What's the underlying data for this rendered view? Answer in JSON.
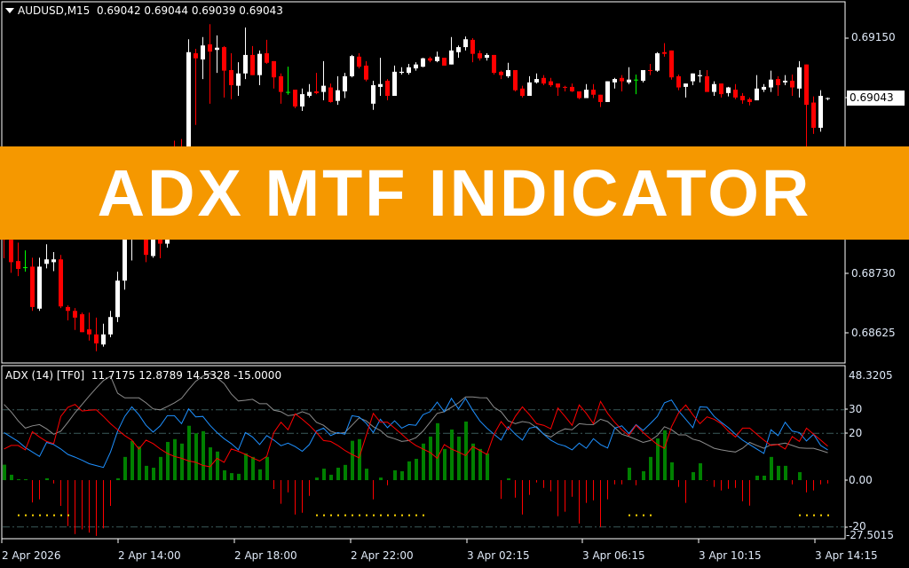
{
  "main_header": {
    "symbol": "AUDUSD,M15",
    "ohlc": "0.69042 0.69044 0.69039 0.69043"
  },
  "indicator_header": {
    "name": "ADX (14) [TF0]",
    "values": "11.7175 12.8789 14.5328 -15.0000"
  },
  "banner": {
    "title": "ADX MTF INDICATOR"
  },
  "price_axis": {
    "ticks": [
      "0.69150",
      "0.68730",
      "0.68625"
    ],
    "current_price": "0.69043"
  },
  "indicator_axis": {
    "ticks": [
      "48.3205",
      "30",
      "20",
      "0.00",
      "-20",
      "-27.5015"
    ]
  },
  "time_axis": {
    "ticks": [
      "2 Apr 2026",
      "2 Apr 14:00",
      "2 Apr 18:00",
      "2 Apr 22:00",
      "3 Apr 02:15",
      "3 Apr 06:15",
      "3 Apr 10:15",
      "3 Apr 14:15"
    ]
  },
  "colors": {
    "background": "#000000",
    "bull": "#ffffff",
    "bear": "#ff0000",
    "doji": "#00ff00",
    "adx": "#8c8c8c",
    "plus_di": "#1e90ff",
    "minus_di": "#ff0000",
    "hist_pos": "#008000",
    "hist_neg": "#ff0000",
    "signal": "#ffd700",
    "levels": "#3a5a5a",
    "banner": "#f59800"
  },
  "chart_data": {
    "type": "candlestick",
    "price_range": [
      0.6859,
      0.6918
    ],
    "candles_ohlc": [
      [
        0.68799,
        0.6881,
        0.68757,
        0.6879
      ],
      [
        0.6879,
        0.68799,
        0.68731,
        0.6875
      ],
      [
        0.68752,
        0.68785,
        0.68725,
        0.68738
      ],
      [
        0.68741,
        0.68771,
        0.68733,
        0.68741
      ],
      [
        0.68742,
        0.68758,
        0.68663,
        0.6867
      ],
      [
        0.68667,
        0.68758,
        0.68663,
        0.68742
      ],
      [
        0.68747,
        0.68782,
        0.68739,
        0.68755
      ],
      [
        0.6875,
        0.68768,
        0.68734,
        0.68755
      ],
      [
        0.68755,
        0.68763,
        0.68668,
        0.68671
      ],
      [
        0.6867,
        0.68673,
        0.68646,
        0.68663
      ],
      [
        0.68663,
        0.68668,
        0.68629,
        0.68651
      ],
      [
        0.68657,
        0.6866,
        0.68625,
        0.68625
      ],
      [
        0.6863,
        0.6866,
        0.6861,
        0.68621
      ],
      [
        0.68621,
        0.68651,
        0.68591,
        0.68605
      ],
      [
        0.68603,
        0.6864,
        0.68599,
        0.68621
      ],
      [
        0.68621,
        0.68663,
        0.68616,
        0.68652
      ],
      [
        0.68652,
        0.68733,
        0.68643,
        0.68717
      ],
      [
        0.68717,
        0.68831,
        0.68701,
        0.68815
      ],
      [
        0.68804,
        0.68902,
        0.68753,
        0.68886
      ],
      [
        0.68886,
        0.6891,
        0.68862,
        0.68902
      ],
      [
        0.68878,
        0.68894,
        0.6875,
        0.68763
      ],
      [
        0.68761,
        0.68815,
        0.68758,
        0.68791
      ],
      [
        0.68823,
        0.68839,
        0.68757,
        0.68783
      ],
      [
        0.68783,
        0.68839,
        0.68776,
        0.68831
      ],
      [
        0.68934,
        0.68967,
        0.6891,
        0.68917
      ],
      [
        0.68941,
        0.6897,
        0.68902,
        0.68917
      ],
      [
        0.68917,
        0.69148,
        0.6891,
        0.69125
      ],
      [
        0.69123,
        0.69131,
        0.68995,
        0.69114
      ],
      [
        0.69112,
        0.69152,
        0.69077,
        0.69137
      ],
      [
        0.69139,
        0.69175,
        0.69033,
        0.69126
      ],
      [
        0.69129,
        0.69155,
        0.69088,
        0.69133
      ],
      [
        0.69134,
        0.69136,
        0.69044,
        0.69092
      ],
      [
        0.69093,
        0.69123,
        0.69041,
        0.69066
      ],
      [
        0.69065,
        0.69107,
        0.69047,
        0.69087
      ],
      [
        0.69087,
        0.69169,
        0.69077,
        0.6912
      ],
      [
        0.6912,
        0.69136,
        0.69084,
        0.69084
      ],
      [
        0.69084,
        0.69128,
        0.69066,
        0.69122
      ],
      [
        0.69123,
        0.69147,
        0.69104,
        0.69106
      ],
      [
        0.69109,
        0.69109,
        0.6906,
        0.6908
      ],
      [
        0.69082,
        0.69087,
        0.69033,
        0.69054
      ],
      [
        0.69054,
        0.69099,
        0.69049,
        0.69054
      ],
      [
        0.69058,
        0.69058,
        0.69025,
        0.69028
      ],
      [
        0.69028,
        0.6906,
        0.6902,
        0.6905
      ],
      [
        0.69047,
        0.69068,
        0.69044,
        0.69054
      ],
      [
        0.69055,
        0.69088,
        0.6905,
        0.69052
      ],
      [
        0.69054,
        0.69109,
        0.69039,
        0.69065
      ],
      [
        0.69062,
        0.69069,
        0.69035,
        0.69036
      ],
      [
        0.69038,
        0.69082,
        0.69031,
        0.69057
      ],
      [
        0.69055,
        0.69088,
        0.69043,
        0.69082
      ],
      [
        0.69082,
        0.6912,
        0.6908,
        0.69118
      ],
      [
        0.69117,
        0.69123,
        0.69096,
        0.69099
      ],
      [
        0.69101,
        0.69109,
        0.69073,
        0.69076
      ],
      [
        0.69033,
        0.69074,
        0.69022,
        0.69066
      ],
      [
        0.69063,
        0.69115,
        0.69047,
        0.69068
      ],
      [
        0.69074,
        0.69077,
        0.69039,
        0.69047
      ],
      [
        0.69047,
        0.69101,
        0.69047,
        0.6909
      ],
      [
        0.69088,
        0.69098,
        0.69085,
        0.6909
      ],
      [
        0.69088,
        0.69104,
        0.69085,
        0.69098
      ],
      [
        0.69096,
        0.69107,
        0.69092,
        0.69103
      ],
      [
        0.69099,
        0.69115,
        0.69098,
        0.69114
      ],
      [
        0.69114,
        0.69117,
        0.69107,
        0.6911
      ],
      [
        0.69109,
        0.69126,
        0.69107,
        0.69117
      ],
      [
        0.69115,
        0.69115,
        0.69101,
        0.69101
      ],
      [
        0.69103,
        0.69152,
        0.69103,
        0.69128
      ],
      [
        0.69125,
        0.69137,
        0.69115,
        0.69134
      ],
      [
        0.69134,
        0.69153,
        0.69128,
        0.69148
      ],
      [
        0.69147,
        0.6915,
        0.69107,
        0.69122
      ],
      [
        0.69123,
        0.69128,
        0.6911,
        0.69114
      ],
      [
        0.69115,
        0.69123,
        0.6911,
        0.6912
      ],
      [
        0.6912,
        0.6912,
        0.69085,
        0.69088
      ],
      [
        0.6909,
        0.69092,
        0.69077,
        0.69084
      ],
      [
        0.69082,
        0.69106,
        0.69079,
        0.69093
      ],
      [
        0.69093,
        0.69093,
        0.69055,
        0.69057
      ],
      [
        0.6906,
        0.69065,
        0.69044,
        0.69047
      ],
      [
        0.69047,
        0.69082,
        0.69047,
        0.69071
      ],
      [
        0.69071,
        0.69087,
        0.69069,
        0.69077
      ],
      [
        0.69079,
        0.69084,
        0.69066,
        0.69069
      ],
      [
        0.69073,
        0.69079,
        0.69063,
        0.69066
      ],
      [
        0.69069,
        0.69069,
        0.69047,
        0.69062
      ],
      [
        0.69063,
        0.69065,
        0.69055,
        0.69062
      ],
      [
        0.69063,
        0.69069,
        0.69054,
        0.69055
      ],
      [
        0.69055,
        0.69055,
        0.69041,
        0.69043
      ],
      [
        0.69043,
        0.69068,
        0.69043,
        0.69058
      ],
      [
        0.69058,
        0.69068,
        0.69043,
        0.69049
      ],
      [
        0.69049,
        0.69049,
        0.69027,
        0.69036
      ],
      [
        0.69036,
        0.69073,
        0.69036,
        0.69073
      ],
      [
        0.69071,
        0.69079,
        0.6906,
        0.69077
      ],
      [
        0.69079,
        0.69084,
        0.69055,
        0.69073
      ],
      [
        0.69071,
        0.69098,
        0.69068,
        0.69076
      ],
      [
        0.69076,
        0.69085,
        0.6905,
        0.69076
      ],
      [
        0.69074,
        0.69093,
        0.69071,
        0.69093
      ],
      [
        0.69093,
        0.69104,
        0.69084,
        0.69092
      ],
      [
        0.69092,
        0.69125,
        0.6909,
        0.69123
      ],
      [
        0.69125,
        0.69141,
        0.69117,
        0.69122
      ],
      [
        0.69128,
        0.69128,
        0.69076,
        0.6908
      ],
      [
        0.69082,
        0.69085,
        0.69057,
        0.69062
      ],
      [
        0.69063,
        0.69069,
        0.69044,
        0.69069
      ],
      [
        0.69073,
        0.69087,
        0.69066,
        0.69087
      ],
      [
        0.69082,
        0.69093,
        0.69071,
        0.69084
      ],
      [
        0.69082,
        0.69093,
        0.69054,
        0.69054
      ],
      [
        0.69054,
        0.69073,
        0.69047,
        0.69068
      ],
      [
        0.69069,
        0.69069,
        0.69044,
        0.6905
      ],
      [
        0.69052,
        0.69063,
        0.69046,
        0.69062
      ],
      [
        0.69058,
        0.69068,
        0.69041,
        0.69044
      ],
      [
        0.69047,
        0.69052,
        0.69033,
        0.69039
      ],
      [
        0.69041,
        0.69044,
        0.6903,
        0.69036
      ],
      [
        0.69039,
        0.69084,
        0.69039,
        0.6906
      ],
      [
        0.69058,
        0.69068,
        0.69054,
        0.69063
      ],
      [
        0.69062,
        0.69092,
        0.69054,
        0.69076
      ],
      [
        0.69077,
        0.69082,
        0.69047,
        0.69066
      ],
      [
        0.69071,
        0.69084,
        0.69066,
        0.69074
      ],
      [
        0.69074,
        0.69085,
        0.69047,
        0.69062
      ],
      [
        0.6906,
        0.69109,
        0.69044,
        0.69098
      ],
      [
        0.69103,
        0.69103,
        0.68952,
        0.69031
      ],
      [
        0.69035,
        0.69046,
        0.68979,
        0.6899
      ],
      [
        0.6899,
        0.69057,
        0.68983,
        0.69047
      ],
      [
        0.69042,
        0.69044,
        0.69039,
        0.69043
      ]
    ],
    "indicator": {
      "range": [
        -27.5015,
        48.3205
      ],
      "levels": [
        30,
        20,
        -20
      ],
      "adx": [
        32.3,
        29.2,
        25.3,
        22.2,
        23.2,
        23.7,
        21.9,
        19.6,
        20.9,
        24.7,
        28.8,
        32.3,
        35.9,
        39.3,
        42.5,
        44.4,
        37.1,
        35.1,
        35.1,
        35.1,
        33,
        30.4,
        30,
        31.4,
        33,
        34.9,
        38.7,
        42.2,
        44.4,
        45.6,
        43.7,
        41.2,
        36.8,
        33.8,
        34.1,
        34.5,
        32.6,
        32.6,
        29.8,
        29.2,
        27.5,
        27.9,
        29.2,
        28.1,
        24.7,
        23.4,
        20.9,
        19.9,
        20.3,
        23.4,
        26.6,
        25.3,
        22.8,
        21.2,
        18.6,
        17.7,
        16.5,
        16.9,
        18.1,
        20.9,
        24.7,
        28.5,
        29.2,
        31.1,
        33,
        35.5,
        35.5,
        35.2,
        35.1,
        31.1,
        29.2,
        25.3,
        24.1,
        25,
        24.5,
        22.4,
        19.6,
        18.4,
        20.5,
        21.9,
        21.5,
        24.1,
        23.8,
        23.7,
        26,
        25,
        22.4,
        19.6,
        18.6,
        17.4,
        16.1,
        16.9,
        19,
        22.8,
        21.5,
        19.3,
        19.3,
        17.5,
        16.7,
        15.2,
        13.6,
        12.9,
        12.4,
        12,
        13.6,
        16.1,
        14.8,
        13.6,
        15.1,
        15.3,
        15.8,
        14.8,
        13.8,
        13.6,
        13.6,
        12.7,
        11.7
      ],
      "plus_di": [
        20.3,
        18.4,
        16.5,
        13.9,
        12,
        10.1,
        16.1,
        15.2,
        13.3,
        11,
        9.8,
        8.5,
        7,
        6.2,
        5.4,
        12,
        20.9,
        27.2,
        31.3,
        27.9,
        23.4,
        20.5,
        23.2,
        27.5,
        27.5,
        24.1,
        30.4,
        27,
        27.2,
        23.4,
        20.3,
        17.7,
        15.6,
        12.9,
        20.3,
        18.4,
        15.2,
        19,
        17.1,
        14.7,
        15.8,
        14.3,
        12.3,
        15.2,
        20.9,
        22.2,
        19,
        20.3,
        19.6,
        27.5,
        27,
        24.3,
        20.3,
        26,
        22.4,
        25.3,
        22.2,
        23.7,
        23.4,
        27.9,
        29.2,
        33.3,
        29.2,
        34.9,
        30.4,
        34.9,
        29.8,
        25.3,
        22.2,
        19.6,
        17.1,
        22.8,
        19.6,
        17.1,
        22.2,
        22.8,
        19.6,
        17.1,
        15.4,
        14.6,
        12.9,
        15.8,
        13.6,
        17.7,
        15.2,
        13.7,
        22.2,
        23.2,
        19.9,
        23.7,
        21.2,
        24.1,
        27.2,
        33,
        34.2,
        29.5,
        26,
        22.4,
        31.3,
        31.1,
        27.2,
        24.7,
        22.4,
        19.6,
        17.1,
        15.2,
        13.3,
        11.4,
        21.5,
        19,
        24.7,
        20.9,
        20.3,
        16.7,
        19.6,
        14.8,
        12.9
      ],
      "minus_di": [
        13.3,
        14.8,
        14.8,
        12.9,
        20.7,
        18.4,
        16.5,
        15.6,
        27.2,
        31.1,
        32.3,
        29.5,
        29.8,
        30,
        27.2,
        24.1,
        21.5,
        19,
        17.1,
        13.3,
        17.1,
        15.6,
        13.3,
        11.4,
        10.1,
        9.3,
        8.2,
        7.6,
        6.3,
        5.7,
        9.3,
        7.6,
        13.3,
        12.3,
        11,
        9.5,
        8.2,
        10.1,
        20.3,
        24.7,
        21.5,
        28.3,
        26,
        23.4,
        20.3,
        16.9,
        16.5,
        14.8,
        12.7,
        11,
        9.5,
        19,
        28.5,
        24.7,
        24.7,
        22.2,
        19.6,
        16.9,
        14.8,
        13.3,
        11.8,
        9.3,
        15.2,
        13.3,
        12,
        10.5,
        14.3,
        12.7,
        11,
        19.6,
        25,
        21.5,
        27.2,
        31.3,
        27.9,
        24.1,
        23.4,
        21.9,
        30.8,
        27.2,
        23.4,
        32.1,
        28.5,
        24.1,
        33.6,
        28.5,
        24.7,
        21.5,
        19,
        23.4,
        20.3,
        17.7,
        15.2,
        13.6,
        22.8,
        28.8,
        32.1,
        27.9,
        24.1,
        27,
        26,
        24.1,
        20.9,
        18.4,
        22.2,
        22.2,
        19.6,
        17.1,
        14.8,
        15.2,
        13.3,
        18.6,
        16.5,
        22.2,
        19.6,
        17.1,
        14.5
      ],
      "histogram": [
        6.6,
        2.3,
        0.4,
        0.4,
        -9.5,
        -8.2,
        0.8,
        -1.4,
        -11,
        -19.6,
        -23,
        -21,
        -22.4,
        -23.8,
        -20.6,
        -11,
        0.8,
        9.9,
        16.7,
        14.4,
        6.1,
        5.3,
        9.9,
        16.3,
        17.5,
        15.6,
        23.2,
        20,
        20.9,
        14,
        12.2,
        4.2,
        3,
        2.7,
        11.4,
        9.9,
        4.6,
        9.9,
        -3.8,
        -10.1,
        -5.2,
        -14.7,
        -13.9,
        -6.7,
        1.1,
        4.9,
        2.3,
        5.3,
        6.5,
        16.8,
        17.5,
        4.9,
        -8.2,
        1.1,
        -2.2,
        4.2,
        3.8,
        8,
        9.1,
        15.6,
        18.6,
        24.3,
        13.3,
        21.6,
        18.6,
        25,
        15.6,
        13.3,
        11.4,
        0,
        -8,
        0.8,
        -7.5,
        -14.7,
        -6.3,
        -1,
        -3.3,
        -4.8,
        -15.4,
        -13.5,
        -7.1,
        -18.5,
        -9.7,
        -8.6,
        -20,
        -8.2,
        -1.8,
        -1.8,
        5.3,
        -2.2,
        3.8,
        9.9,
        17.8,
        21.3,
        7.6,
        -2.9,
        -9.7,
        3.4,
        7.2,
        -0.3,
        -2.9,
        -4.4,
        -3.7,
        -3.3,
        -9,
        -10.9,
        1.9,
        1.9,
        9.9,
        6.1,
        6.1,
        -1.8,
        3.4,
        -5.2,
        -4.4,
        -1.8,
        -1.4
      ],
      "signal_value": -15,
      "signal_bars": [
        2,
        3,
        4,
        5,
        6,
        7,
        8,
        9,
        44,
        45,
        46,
        47,
        48,
        49,
        50,
        51,
        52,
        53,
        54,
        55,
        56,
        57,
        58,
        59,
        88,
        89,
        90,
        91,
        112,
        113,
        114,
        115,
        116
      ]
    }
  }
}
